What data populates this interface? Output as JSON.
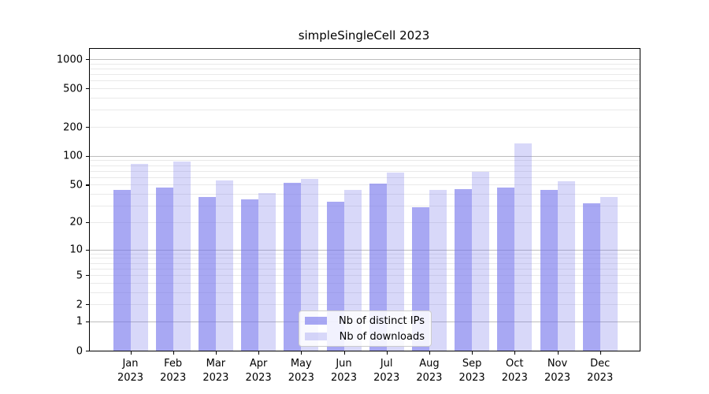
{
  "title": "simpleSingleCell 2023",
  "chart_data": {
    "type": "bar",
    "scale": "log1p",
    "title": "simpleSingleCell 2023",
    "xlabel": "",
    "ylabel": "",
    "categories": [
      "Jan 2023",
      "Feb 2023",
      "Mar 2023",
      "Apr 2023",
      "May 2023",
      "Jun 2023",
      "Jul 2023",
      "Aug 2023",
      "Sep 2023",
      "Oct 2023",
      "Nov 2023",
      "Dec 2023"
    ],
    "series": [
      {
        "name": "Nb of distinct IPs",
        "color": "rgba(115,115,235,0.62)",
        "values": [
          44,
          47,
          37,
          35,
          52,
          33,
          51,
          29,
          45,
          47,
          44,
          32
        ]
      },
      {
        "name": "Nb of downloads",
        "color": "rgba(115,115,235,0.28)",
        "values": [
          83,
          88,
          56,
          41,
          58,
          44,
          67,
          44,
          68,
          135,
          54,
          37
        ]
      }
    ],
    "yticks": [
      0,
      1,
      2,
      5,
      10,
      20,
      50,
      100,
      200,
      500,
      1000
    ],
    "ylim": [
      0,
      1277
    ],
    "grid": "horizontal major+minor",
    "legend_position": "lower center",
    "major_grid_values": [
      1,
      10,
      100,
      1000
    ],
    "minor_grid_values": [
      2,
      3,
      4,
      5,
      6,
      7,
      8,
      9,
      20,
      30,
      40,
      50,
      60,
      70,
      80,
      90,
      200,
      300,
      400,
      500,
      600,
      700,
      800,
      900
    ]
  },
  "colors": {
    "bar_distinct_ips": "rgba(115,115,235,0.62)",
    "bar_downloads": "rgba(115,115,235,0.28)",
    "major_grid": "#bdbdbd",
    "minor_grid": "#e9e9e9",
    "axis": "#000000"
  }
}
